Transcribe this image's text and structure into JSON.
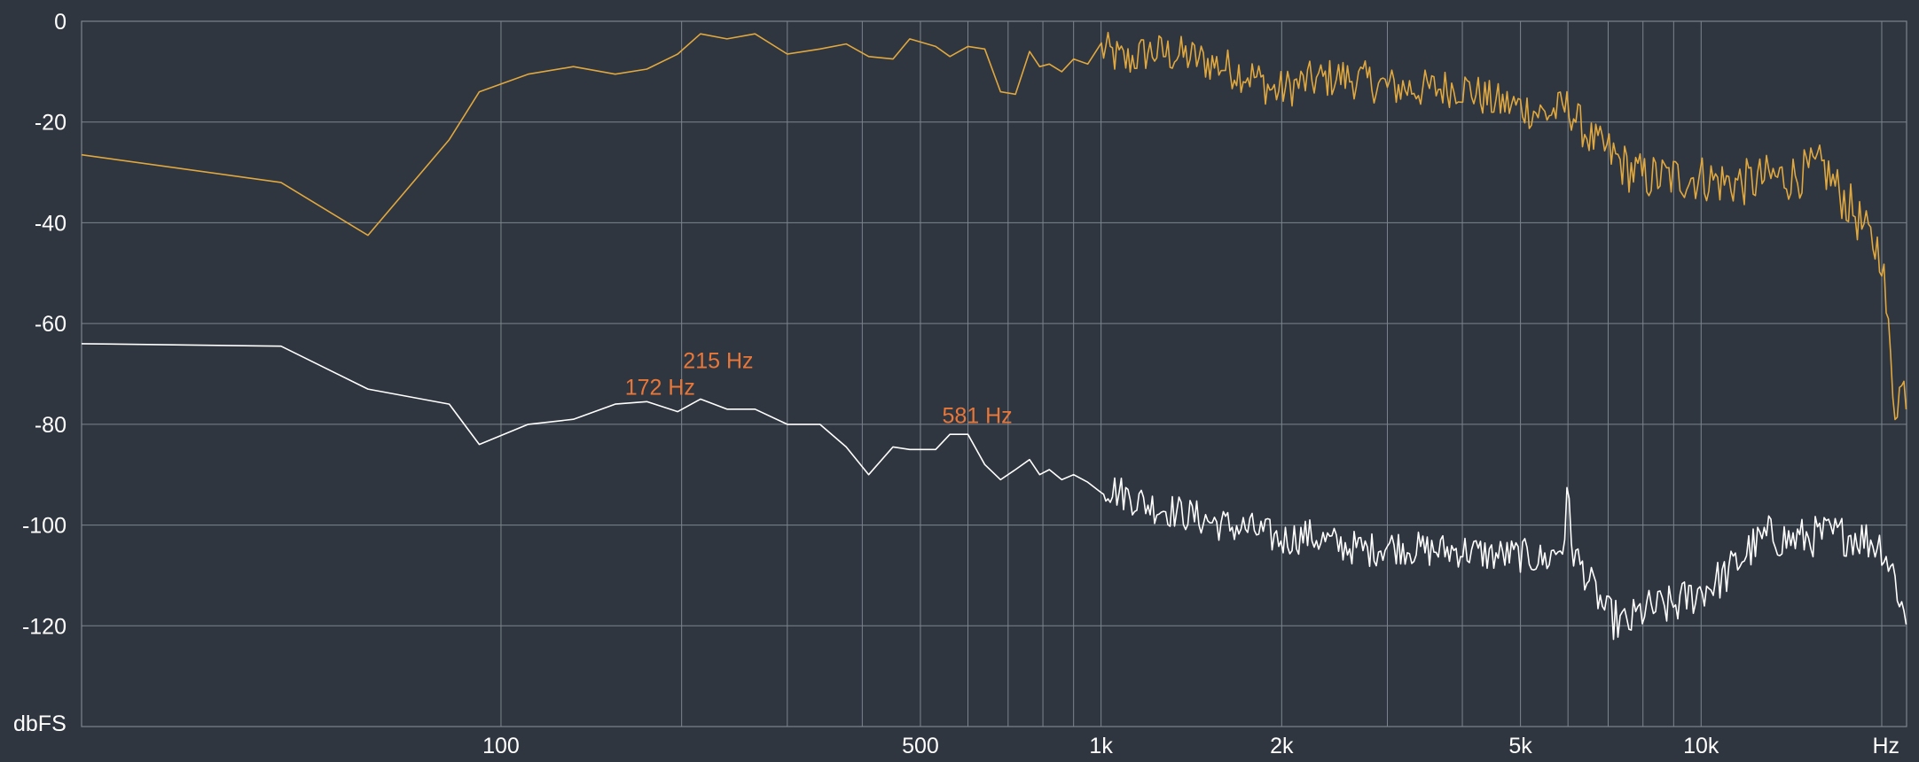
{
  "chart_data": {
    "type": "line",
    "xscale": "log",
    "xlim": [
      20,
      22000
    ],
    "ylim": [
      -140,
      0
    ],
    "grid": true,
    "y_ticks": [
      {
        "value": 0,
        "label": "0"
      },
      {
        "value": -20,
        "label": "-20"
      },
      {
        "value": -40,
        "label": "-40"
      },
      {
        "value": -60,
        "label": "-60"
      },
      {
        "value": -80,
        "label": "-80"
      },
      {
        "value": -100,
        "label": "-100"
      },
      {
        "value": -120,
        "label": "-120"
      }
    ],
    "x_grid_values": [
      100,
      200,
      300,
      400,
      500,
      600,
      700,
      800,
      900,
      1000,
      2000,
      3000,
      4000,
      5000,
      6000,
      7000,
      8000,
      9000,
      10000,
      20000
    ],
    "x_tick_labels": [
      {
        "value": 100,
        "label": "100"
      },
      {
        "value": 500,
        "label": "500"
      },
      {
        "value": 1000,
        "label": "1k"
      },
      {
        "value": 2000,
        "label": "2k"
      },
      {
        "value": 5000,
        "label": "5k"
      },
      {
        "value": 10000,
        "label": "10k"
      }
    ],
    "ylabel": "dbFS",
    "xunit": "Hz",
    "series": [
      {
        "color": "#e0a83e",
        "noise": 4,
        "x": [
          20,
          43,
          60,
          82,
          92,
          111,
          132,
          155,
          175,
          197,
          215,
          238,
          265,
          300,
          340,
          376,
          410,
          450,
          480,
          530,
          560,
          600,
          640,
          680,
          720,
          760,
          790,
          820,
          860,
          900,
          950,
          1000,
          1100,
          1200,
          1400,
          1600,
          1800,
          1950,
          2200,
          2500,
          2800,
          3000,
          3500,
          4000,
          4500,
          5000,
          5500,
          6000,
          6500,
          7000,
          7500,
          8000,
          9000,
          10000,
          11000,
          12000,
          13000,
          14000,
          16000,
          17000,
          18000,
          19000,
          20000,
          20500,
          21000,
          21500,
          22000
        ],
        "values": [
          -26.5,
          -32,
          -42.5,
          -23.5,
          -14,
          -10.5,
          -9,
          -10.5,
          -9.5,
          -6.5,
          -2.5,
          -3.5,
          -2.5,
          -6.5,
          -5.5,
          -4.5,
          -7,
          -7.5,
          -3.5,
          -5,
          -7,
          -5,
          -5.5,
          -14,
          -14.5,
          -6,
          -9,
          -8.5,
          -10,
          -7.5,
          -8.5,
          -5.5,
          -8,
          -6,
          -7,
          -9,
          -11,
          -14,
          -12,
          -11,
          -12,
          -13,
          -13.5,
          -13,
          -16,
          -17,
          -18.5,
          -17,
          -23,
          -26,
          -29,
          -31,
          -31,
          -31,
          -32,
          -32,
          -31,
          -31,
          -29,
          -34,
          -38,
          -43,
          -46,
          -62,
          -76,
          -73,
          -73
        ]
      },
      {
        "color": "#ffffff",
        "noise": 3.5,
        "x": [
          20,
          43,
          60,
          82,
          92,
          111,
          132,
          155,
          175,
          197,
          215,
          238,
          265,
          300,
          340,
          376,
          410,
          450,
          480,
          530,
          560,
          600,
          640,
          680,
          720,
          760,
          790,
          820,
          860,
          900,
          950,
          1000,
          1100,
          1200,
          1400,
          1600,
          1800,
          2000,
          2200,
          2500,
          2800,
          3000,
          3500,
          4000,
          4500,
          5000,
          5500,
          5900,
          6000,
          6100,
          6300,
          7000,
          7500,
          8000,
          9000,
          10000,
          11000,
          12000,
          13000,
          14000,
          16000,
          18000,
          20000,
          21000,
          22000
        ],
        "values": [
          -64,
          -64.5,
          -73,
          -76,
          -84,
          -80,
          -79,
          -76,
          -75.5,
          -77.5,
          -75,
          -77,
          -77,
          -80,
          -80,
          -84.5,
          -90,
          -84.5,
          -85,
          -85,
          -82,
          -82,
          -88,
          -91,
          -89,
          -87,
          -90,
          -89,
          -91,
          -90,
          -91.5,
          -92,
          -94,
          -96,
          -98,
          -100,
          -101,
          -103,
          -102,
          -104,
          -105,
          -104,
          -105,
          -105,
          -106,
          -106,
          -107,
          -104,
          -93,
          -105,
          -108,
          -118,
          -120,
          -117,
          -116,
          -113,
          -110,
          -105,
          -102,
          -103,
          -102,
          -102,
          -104,
          -110,
          -120
        ]
      }
    ],
    "annotations": [
      {
        "text": "215 Hz",
        "x": 215,
        "y": -75.5
      },
      {
        "text": "172 Hz",
        "x": 172,
        "y": -75.5
      },
      {
        "text": "581 Hz",
        "x": 581,
        "y": -81.5
      }
    ],
    "colors": {
      "background": "#2f3640",
      "grid": "#7d848d",
      "annotation": "#e8773a"
    }
  }
}
